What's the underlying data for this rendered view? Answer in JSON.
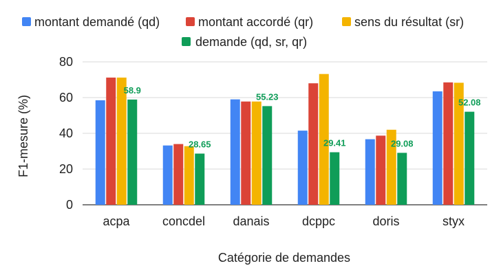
{
  "chart_data": {
    "type": "bar",
    "title": "",
    "xlabel": "Catégorie de demandes",
    "ylabel": "F1-mesure (%)",
    "ylim": [
      0,
      80
    ],
    "yticks": [
      0,
      20,
      40,
      60,
      80
    ],
    "grid": true,
    "legend_position": "top",
    "categories": [
      "acpa",
      "concdel",
      "danais",
      "dcppc",
      "doris",
      "styx"
    ],
    "series": [
      {
        "name": "montant demandé (qd)",
        "color": "#4285F4",
        "values": [
          58.5,
          33.2,
          59.0,
          41.5,
          36.7,
          63.5
        ]
      },
      {
        "name": "montant accordé (qr)",
        "color": "#DB4437",
        "values": [
          71.2,
          34.0,
          57.8,
          68.0,
          38.7,
          68.5
        ]
      },
      {
        "name": "sens du résultat (sr)",
        "color": "#F4B400",
        "values": [
          71.2,
          32.8,
          57.8,
          73.2,
          42.0,
          68.3
        ]
      },
      {
        "name": "demande (qd, sr, qr)",
        "color": "#0F9D58",
        "values": [
          58.9,
          28.65,
          55.23,
          29.41,
          29.08,
          52.08
        ],
        "data_labels": [
          "58.9",
          "28.65",
          "55.23",
          "29.41",
          "29.08",
          "52.08"
        ]
      }
    ]
  }
}
